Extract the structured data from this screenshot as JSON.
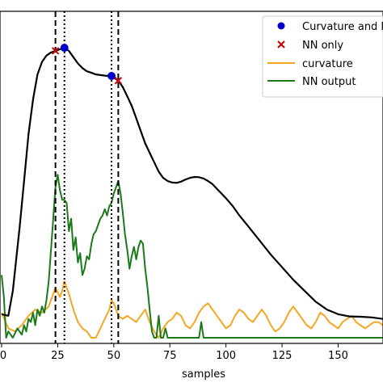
{
  "chart_data": {
    "type": "line",
    "xlabel": "samples",
    "ylabel": "",
    "title": "",
    "xlim": [
      0,
      170
    ],
    "ylim": [
      0,
      1
    ],
    "grid": false,
    "x_ticks": [
      0,
      25,
      50,
      75,
      100,
      125,
      150
    ],
    "x_tick_labels": [
      "0",
      "25",
      "50",
      "75",
      "100",
      "125",
      "150"
    ],
    "legend": {
      "placement": "top-right",
      "entries": [
        {
          "label": "Curvature and NN",
          "marker": "circle",
          "color": "#0000cc"
        },
        {
          "label": "NN only",
          "marker": "x",
          "color": "#cc0000"
        },
        {
          "label": "curvature",
          "line": true,
          "color": "#f5a623"
        },
        {
          "label": "NN output",
          "line": true,
          "color": "#1a7a1a"
        }
      ]
    },
    "colors": {
      "signal": "#000000",
      "curvature": "#f5a623",
      "nn_output": "#1a7a1a",
      "both_marker": "#0000cc",
      "nn_only_marker": "#cc0000",
      "vline": "#000000"
    },
    "vlines": [
      {
        "x": 24,
        "style": "dashed"
      },
      {
        "x": 28,
        "style": "dotted"
      },
      {
        "x": 49,
        "style": "dotted"
      },
      {
        "x": 52,
        "style": "dashed"
      }
    ],
    "markers_both": [
      {
        "x": 28,
        "y": 0.925
      },
      {
        "x": 49,
        "y": 0.835
      }
    ],
    "markers_nn_only": [
      {
        "x": 24,
        "y": 0.915
      },
      {
        "x": 52,
        "y": 0.82
      }
    ],
    "series": [
      {
        "key": "signal",
        "x": [
          0,
          3,
          5,
          8,
          10,
          12,
          14,
          16,
          18,
          20,
          22,
          24,
          26,
          28,
          30,
          32,
          34,
          36,
          38,
          40,
          42,
          44,
          46,
          48,
          50,
          52,
          54,
          56,
          58,
          60,
          62,
          64,
          66,
          68,
          70,
          72,
          74,
          76,
          78,
          80,
          82,
          84,
          86,
          88,
          90,
          92,
          94,
          96,
          98,
          100,
          103,
          106,
          110,
          115,
          120,
          125,
          130,
          135,
          140,
          145,
          150,
          155,
          160,
          165,
          170
        ],
        "y": [
          0.075,
          0.07,
          0.15,
          0.35,
          0.5,
          0.65,
          0.76,
          0.84,
          0.88,
          0.9,
          0.91,
          0.915,
          0.92,
          0.925,
          0.915,
          0.895,
          0.875,
          0.86,
          0.85,
          0.845,
          0.84,
          0.838,
          0.836,
          0.835,
          0.83,
          0.82,
          0.8,
          0.77,
          0.74,
          0.7,
          0.66,
          0.62,
          0.59,
          0.56,
          0.53,
          0.51,
          0.5,
          0.495,
          0.494,
          0.498,
          0.505,
          0.51,
          0.513,
          0.512,
          0.508,
          0.5,
          0.49,
          0.475,
          0.46,
          0.445,
          0.42,
          0.39,
          0.355,
          0.31,
          0.265,
          0.225,
          0.185,
          0.15,
          0.115,
          0.09,
          0.075,
          0.068,
          0.067,
          0.065,
          0.06
        ]
      },
      {
        "key": "nn_output",
        "x": [
          0,
          1,
          2,
          3,
          5,
          7,
          9,
          10,
          11,
          12,
          13,
          14,
          15,
          16,
          17,
          18,
          19,
          20,
          21,
          22,
          23,
          24,
          25,
          26,
          27,
          28,
          29,
          30,
          31,
          32,
          33,
          34,
          35,
          36,
          37,
          38,
          39,
          40,
          41,
          42,
          43,
          44,
          45,
          46,
          47,
          48,
          49,
          50,
          51,
          52,
          53,
          54,
          55,
          56,
          57,
          58,
          59,
          60,
          61,
          62,
          63,
          64,
          65,
          66,
          67,
          68,
          69,
          70,
          71,
          72,
          73,
          74,
          75,
          80,
          85,
          88,
          89,
          90,
          95,
          100,
          120,
          150,
          170
        ],
        "y": [
          0.2,
          0.13,
          0.0,
          0.02,
          0.0,
          0.03,
          0.01,
          0.04,
          0.02,
          0.06,
          0.05,
          0.08,
          0.04,
          0.09,
          0.07,
          0.1,
          0.08,
          0.12,
          0.18,
          0.28,
          0.38,
          0.48,
          0.52,
          0.47,
          0.44,
          0.44,
          0.43,
          0.34,
          0.38,
          0.28,
          0.32,
          0.24,
          0.27,
          0.2,
          0.22,
          0.26,
          0.25,
          0.3,
          0.33,
          0.34,
          0.36,
          0.38,
          0.39,
          0.41,
          0.39,
          0.42,
          0.43,
          0.46,
          0.48,
          0.5,
          0.46,
          0.4,
          0.33,
          0.28,
          0.22,
          0.26,
          0.29,
          0.25,
          0.29,
          0.31,
          0.3,
          0.22,
          0.16,
          0.09,
          0.02,
          0.0,
          0.0,
          0.07,
          0.0,
          0.0,
          0.03,
          0.0,
          0.0,
          0.0,
          0.0,
          0.0,
          0.05,
          0.0,
          0.0,
          0.0,
          0.0,
          0.0,
          0.0
        ]
      },
      {
        "key": "curvature",
        "x": [
          0,
          3,
          6,
          9,
          12,
          15,
          18,
          21,
          23,
          24,
          26,
          27,
          28,
          30,
          32,
          34,
          36,
          38,
          40,
          42,
          44,
          46,
          48,
          49,
          50,
          52,
          54,
          56,
          58,
          60,
          62,
          64,
          66,
          68,
          70,
          72,
          74,
          76,
          78,
          80,
          82,
          84,
          86,
          88,
          90,
          92,
          94,
          96,
          98,
          100,
          102,
          104,
          106,
          108,
          110,
          112,
          114,
          116,
          118,
          120,
          122,
          124,
          126,
          128,
          130,
          132,
          134,
          136,
          138,
          140,
          142,
          144,
          146,
          148,
          150,
          152,
          154,
          156,
          158,
          160,
          162,
          164,
          166,
          168,
          170
        ],
        "y": [
          0.08,
          0.03,
          0.02,
          0.04,
          0.07,
          0.09,
          0.08,
          0.1,
          0.14,
          0.16,
          0.13,
          0.15,
          0.18,
          0.14,
          0.09,
          0.05,
          0.03,
          0.02,
          0.0,
          0.0,
          0.03,
          0.06,
          0.09,
          0.12,
          0.11,
          0.07,
          0.06,
          0.07,
          0.06,
          0.05,
          0.07,
          0.09,
          0.05,
          0.02,
          0.0,
          0.03,
          0.05,
          0.06,
          0.08,
          0.07,
          0.04,
          0.03,
          0.05,
          0.08,
          0.1,
          0.11,
          0.09,
          0.07,
          0.05,
          0.03,
          0.04,
          0.07,
          0.09,
          0.08,
          0.06,
          0.05,
          0.07,
          0.09,
          0.07,
          0.04,
          0.02,
          0.03,
          0.05,
          0.08,
          0.1,
          0.08,
          0.06,
          0.04,
          0.03,
          0.05,
          0.08,
          0.07,
          0.05,
          0.04,
          0.03,
          0.05,
          0.06,
          0.07,
          0.05,
          0.04,
          0.03,
          0.04,
          0.05,
          0.05,
          0.04
        ]
      }
    ]
  }
}
